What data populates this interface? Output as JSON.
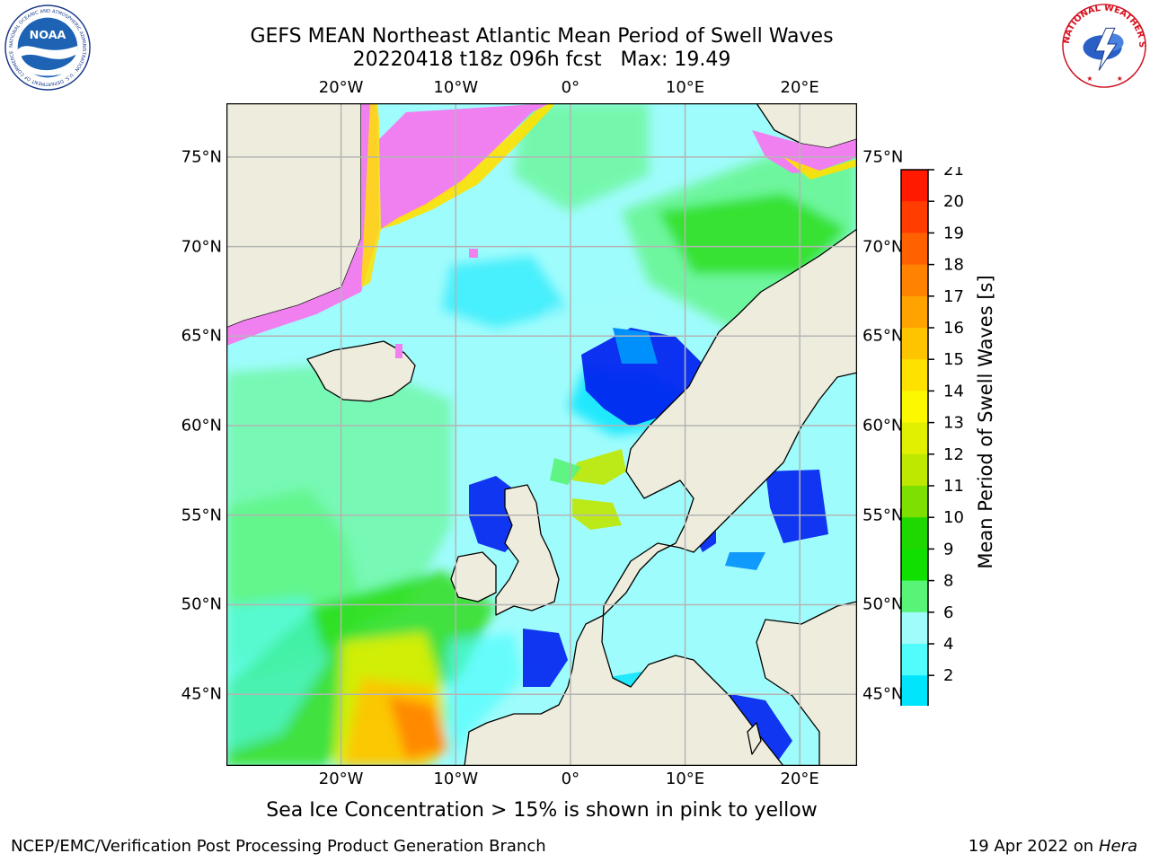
{
  "title": {
    "line1": "GEFS MEAN Northeast Atlantic Mean Period of Swell Waves",
    "line2": "20220418 t18z 096h fcst   Max: 19.49"
  },
  "map": {
    "projection": "lat-lon",
    "lon_range": [
      -30,
      25
    ],
    "lat_range": [
      41,
      78
    ],
    "x_ticks": [
      {
        "lon": -20,
        "label": "20°W"
      },
      {
        "lon": -10,
        "label": "10°W"
      },
      {
        "lon": 0,
        "label": "0°"
      },
      {
        "lon": 10,
        "label": "10°E"
      },
      {
        "lon": 20,
        "label": "20°E"
      }
    ],
    "y_ticks": [
      {
        "lat": 75,
        "label": "75°N"
      },
      {
        "lat": 70,
        "label": "70°N"
      },
      {
        "lat": 65,
        "label": "65°N"
      },
      {
        "lat": 60,
        "label": "60°N"
      },
      {
        "lat": 55,
        "label": "55°N"
      },
      {
        "lat": 50,
        "label": "50°N"
      },
      {
        "lat": 45,
        "label": "45°N"
      }
    ],
    "gridlines": true,
    "colors": {
      "ocean_default": "#9ffcfc",
      "land": "#eeeddd",
      "ice": "#f080f0",
      "grid": "#b4b4b4",
      "coast": "#000000"
    }
  },
  "colorbar": {
    "label": "Mean Period of Swell Waves [s]",
    "ticks": [
      "21",
      "20",
      "19",
      "18",
      "17",
      "16",
      "15",
      "14",
      "13",
      "12",
      "11",
      "10",
      "9",
      "8",
      "6",
      "4",
      "2"
    ],
    "colors": [
      "#ff1a00",
      "#ff3d00",
      "#ff6100",
      "#ff8300",
      "#ffa300",
      "#ffc400",
      "#ffe100",
      "#fcf800",
      "#e0f000",
      "#bfe800",
      "#7ee000",
      "#1fd800",
      "#10e000",
      "#58f478",
      "#a0fcfa",
      "#50fcfc",
      "#00e4fc",
      "#0090fc"
    ],
    "extend_min_color": "#0020f0"
  },
  "subtitle": "Sea Ice Concentration > 15% is shown in pink to yellow",
  "footer": {
    "left": "NCEP/EMC/Verification Post Processing Product Generation Branch",
    "right_date": "19 Apr 2022 on ",
    "right_host": "Hera"
  },
  "logos": {
    "noaa_text": "NOAA",
    "noaa_ring": "NATIONAL OCEANIC AND ATMOSPHERIC ADMINISTRATION · U.S. DEPARTMENT OF COMMERCE",
    "nws_ring": "NATIONAL WEATHER SERVICE"
  }
}
